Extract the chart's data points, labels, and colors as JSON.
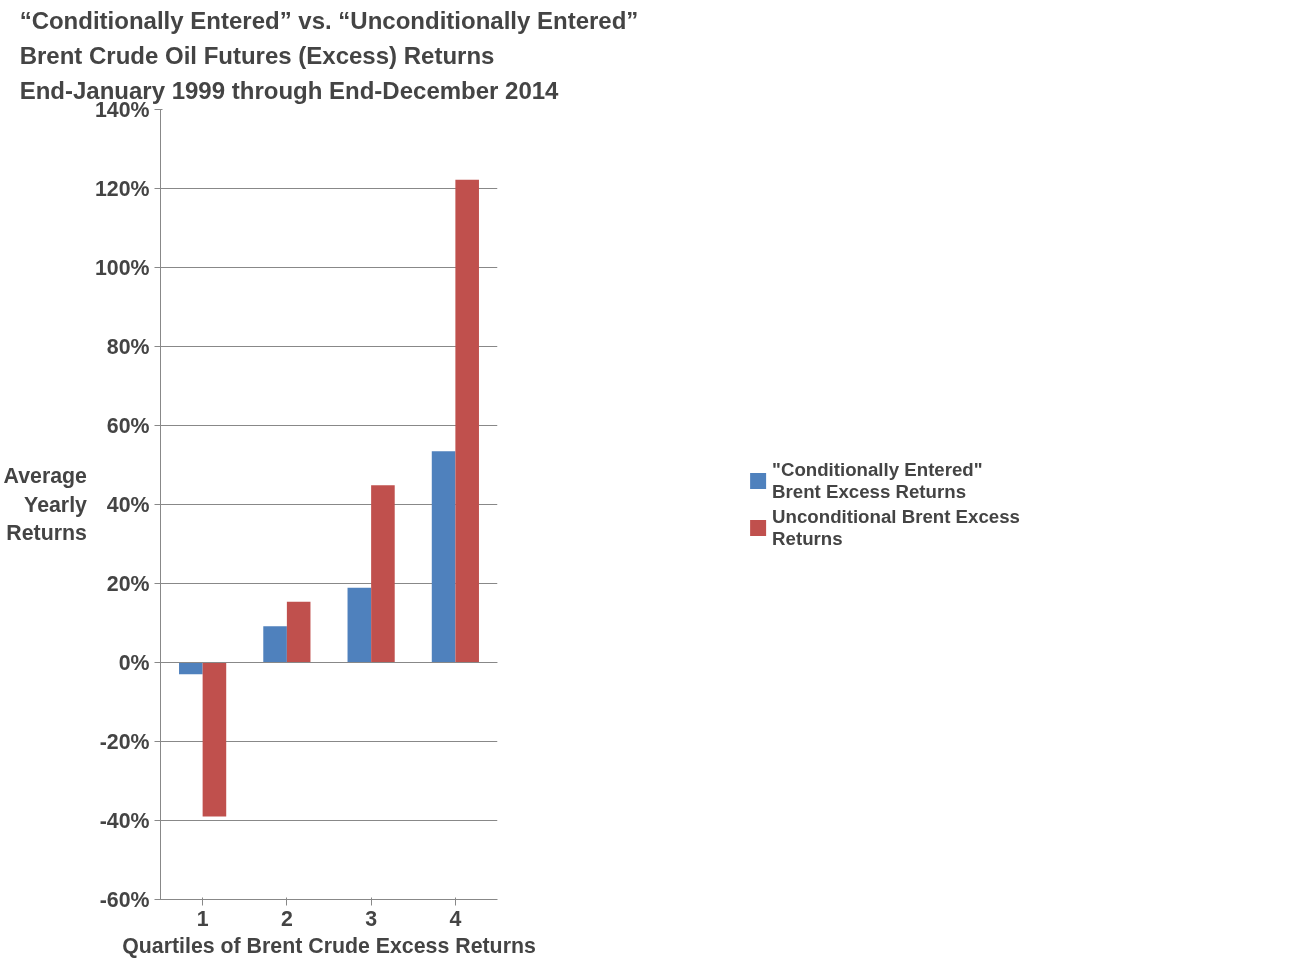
{
  "chart_data": {
    "type": "bar",
    "title": "“Conditionally Entered” vs. “Unconditionally Entered”\nBrent Crude Oil Futures (Excess) Returns\nEnd-January 1999 through End-December 2014",
    "xlabel": "Quartiles of Brent Crude Excess Returns",
    "ylabel": "Average\nYearly\nReturns",
    "categories": [
      "1",
      "2",
      "3",
      "4"
    ],
    "series": [
      {
        "name": "\"Conditionally Entered\" Brent Excess Returns",
        "color": "#4f81bd",
        "values": [
          -3,
          9.2,
          18.9,
          53.5
        ]
      },
      {
        "name": "Unconditional Brent Excess Returns",
        "color": "#c0504d",
        "values": [
          -39,
          15.4,
          44.9,
          122.2
        ]
      }
    ],
    "ylim": [
      -60,
      140
    ],
    "yticks": [
      {
        "value": -60,
        "label": "-60%"
      },
      {
        "value": -40,
        "label": "-40%"
      },
      {
        "value": -20,
        "label": "-20%"
      },
      {
        "value": 0,
        "label": "0%"
      },
      {
        "value": 20,
        "label": "20%"
      },
      {
        "value": 40,
        "label": "40%"
      },
      {
        "value": 60,
        "label": "60%"
      },
      {
        "value": 80,
        "label": "80%"
      },
      {
        "value": 100,
        "label": "100%"
      },
      {
        "value": 120,
        "label": "120%"
      },
      {
        "value": 140,
        "label": "140%"
      }
    ],
    "grid": "y",
    "legend": "right"
  }
}
